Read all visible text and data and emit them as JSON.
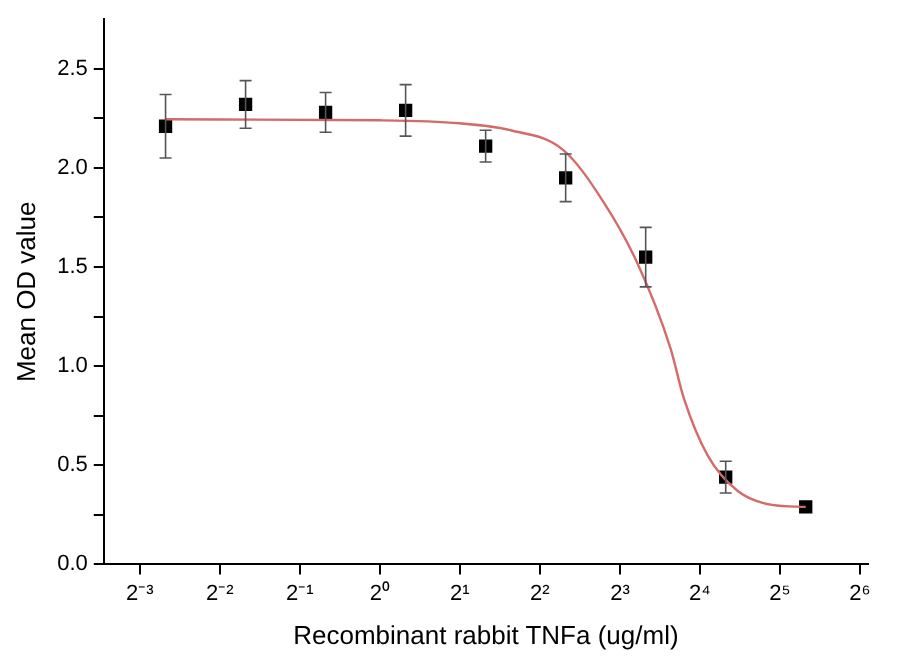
{
  "chart_data": {
    "type": "scatter",
    "xlabel": "Recombinant rabbit TNFa (ug/ml)",
    "ylabel": "Mean OD value",
    "log": "x",
    "grid": false,
    "legend": false,
    "marker": "square",
    "xlim": [
      0.0915,
      68.6
    ],
    "xticks": [
      {
        "value": 0.125,
        "label": "2⁻³"
      },
      {
        "value": 0.25,
        "label": "2⁻²"
      },
      {
        "value": 0.5,
        "label": "2⁻¹"
      },
      {
        "value": 1,
        "label": "2⁰"
      },
      {
        "value": 2,
        "label": "2¹"
      },
      {
        "value": 4,
        "label": "2²"
      },
      {
        "value": 8,
        "label": "2³"
      },
      {
        "value": 16,
        "label": "2⁴"
      },
      {
        "value": 32,
        "label": "2⁵"
      },
      {
        "value": 64,
        "label": "2⁶"
      }
    ],
    "ylim": [
      0,
      2.75
    ],
    "yticks": [
      {
        "value": 0,
        "label": "0.0"
      },
      {
        "value": 0.25,
        "label": null
      },
      {
        "value": 0.5,
        "label": "0.5"
      },
      {
        "value": 0.75,
        "label": null
      },
      {
        "value": 1,
        "label": "1.0"
      },
      {
        "value": 1.25,
        "label": null
      },
      {
        "value": 1.5,
        "label": "1.5"
      },
      {
        "value": 1.75,
        "label": null
      },
      {
        "value": 2,
        "label": "2.0"
      },
      {
        "value": 2.25,
        "label": null
      },
      {
        "value": 2.5,
        "label": "2.5"
      }
    ],
    "series": [
      {
        "type": "line",
        "color": "#d46a6a",
        "marker": "none",
        "x": [
          0.15625,
          1,
          2,
          3.1,
          4.9,
          7.0,
          9.3,
          12.4,
          13.9,
          17.1,
          22.2,
          29.9,
          40
        ],
        "values": [
          2.245,
          2.24,
          2.225,
          2.19,
          2.09,
          1.82,
          1.52,
          1.09,
          0.84,
          0.55,
          0.37,
          0.3,
          0.29
        ]
      },
      {
        "color": "#000000",
        "x": [
          0.15625,
          0.3125,
          0.625,
          1.25,
          2.5,
          5,
          10,
          20,
          40
        ],
        "values": [
          2.21,
          2.32,
          2.28,
          2.29,
          2.11,
          1.95,
          1.55,
          0.44,
          0.29
        ],
        "errors": [
          0.16,
          0.12,
          0.1,
          0.13,
          0.08,
          0.12,
          0.15,
          0.08,
          null
        ]
      }
    ]
  }
}
